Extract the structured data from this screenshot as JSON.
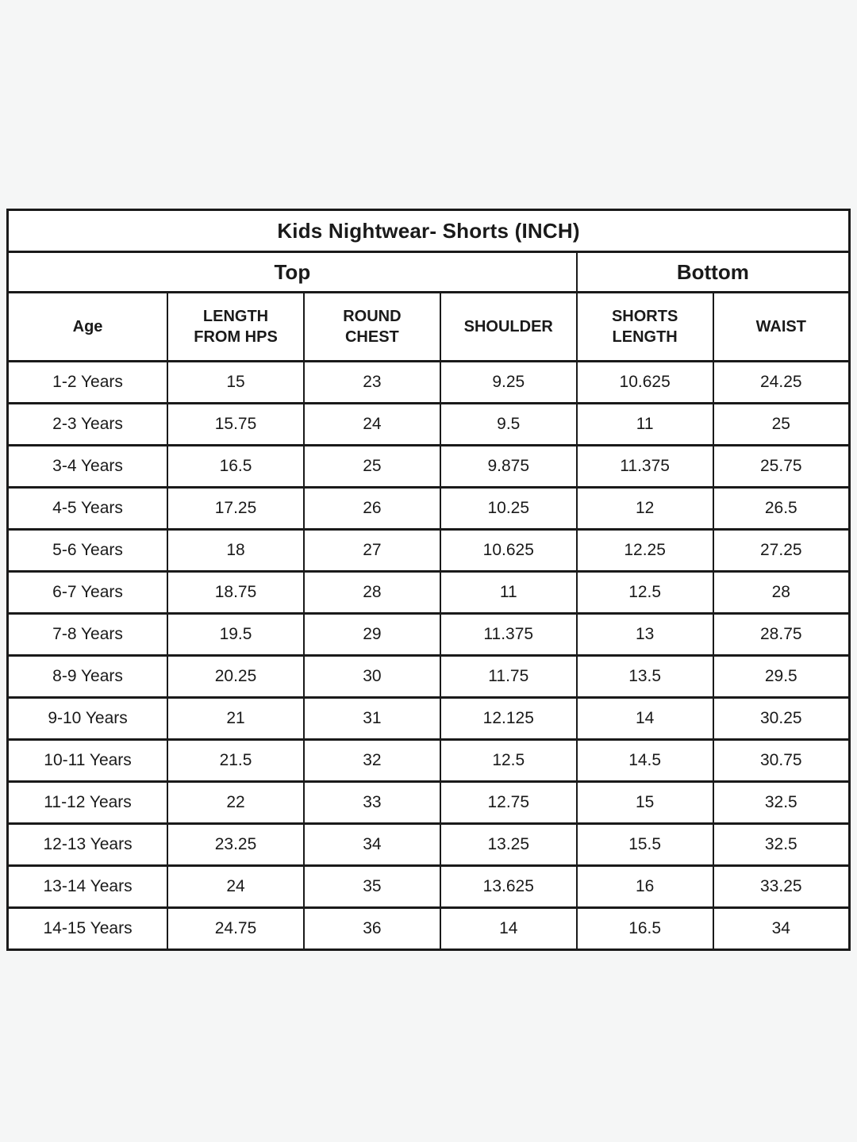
{
  "table": {
    "title": "Kids Nightwear- Shorts (INCH)",
    "groups": [
      {
        "label": "Top",
        "span": 4
      },
      {
        "label": "Bottom",
        "span": 2
      }
    ],
    "columns": [
      "Age",
      "LENGTH\nFROM HPS",
      "ROUND\nCHEST",
      "SHOULDER",
      "SHORTS\nLENGTH",
      "WAIST"
    ],
    "rows": [
      [
        "1-2 Years",
        "15",
        "23",
        "9.25",
        "10.625",
        "24.25"
      ],
      [
        "2-3 Years",
        "15.75",
        "24",
        "9.5",
        "11",
        "25"
      ],
      [
        "3-4 Years",
        "16.5",
        "25",
        "9.875",
        "11.375",
        "25.75"
      ],
      [
        "4-5 Years",
        "17.25",
        "26",
        "10.25",
        "12",
        "26.5"
      ],
      [
        "5-6 Years",
        "18",
        "27",
        "10.625",
        "12.25",
        "27.25"
      ],
      [
        "6-7 Years",
        "18.75",
        "28",
        "11",
        "12.5",
        "28"
      ],
      [
        "7-8 Years",
        "19.5",
        "29",
        "11.375",
        "13",
        "28.75"
      ],
      [
        "8-9 Years",
        "20.25",
        "30",
        "11.75",
        "13.5",
        "29.5"
      ],
      [
        "9-10 Years",
        "21",
        "31",
        "12.125",
        "14",
        "30.25"
      ],
      [
        "10-11 Years",
        "21.5",
        "32",
        "12.5",
        "14.5",
        "30.75"
      ],
      [
        "11-12 Years",
        "22",
        "33",
        "12.75",
        "15",
        "32.5"
      ],
      [
        "12-13 Years",
        "23.25",
        "34",
        "13.25",
        "15.5",
        "32.5"
      ],
      [
        "13-14 Years",
        "24",
        "35",
        "13.625",
        "16",
        "33.25"
      ],
      [
        "14-15 Years",
        "24.75",
        "36",
        "14",
        "16.5",
        "34"
      ]
    ]
  },
  "colors": {
    "page_background": "#f5f6f6",
    "table_background": "#ffffff",
    "border": "#1a1a1a",
    "text": "#1a1a1a"
  }
}
